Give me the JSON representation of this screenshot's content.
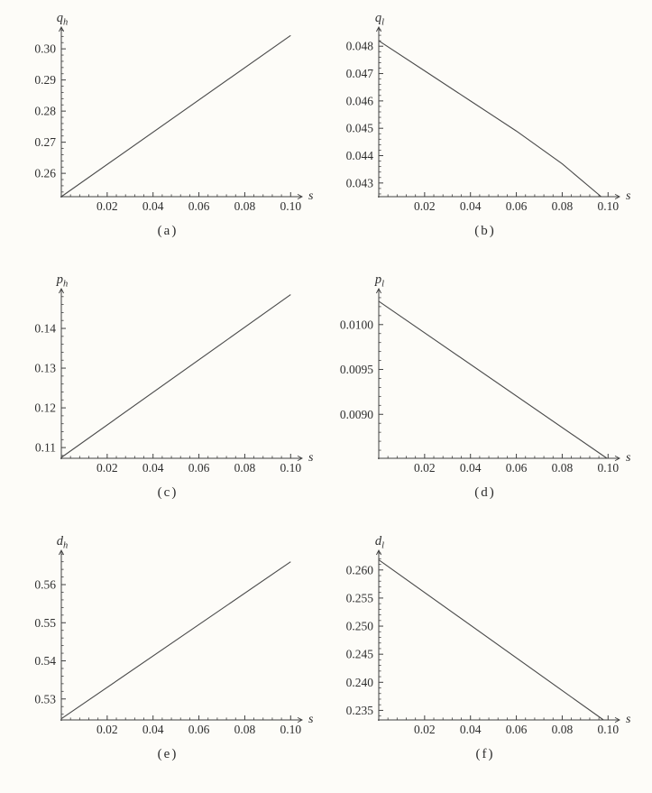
{
  "style": {
    "background": "#fdfcf8",
    "axis_color": "#3f3f3f",
    "line_color": "#4a4a4a",
    "text_color": "#2e2e2e"
  },
  "figure": {
    "layout": "3 rows x 2 columns",
    "xlabel": "s"
  },
  "chart_data": [
    {
      "type": "line",
      "panel": "a",
      "caption": "(a)",
      "ylabel": {
        "base": "q",
        "sub": "h"
      },
      "xlabel": "s",
      "trend": "increasing",
      "x": {
        "min": 0,
        "axis_max": 0.105,
        "data_max": 0.1,
        "ticks": [
          0.02,
          0.04,
          0.06,
          0.08,
          0.1
        ],
        "tick_labels": [
          "0.02",
          "0.04",
          "0.06",
          "0.08",
          "0.10"
        ],
        "minor_step": 0.004
      },
      "y": {
        "min": 0.2525,
        "max": 0.307,
        "ticks": [
          0.26,
          0.27,
          0.28,
          0.29,
          0.3
        ],
        "tick_labels": [
          "0.26",
          "0.27",
          "0.28",
          "0.29",
          "0.30"
        ],
        "minor_step": 0.002
      },
      "points": [
        [
          0,
          0.2525
        ],
        [
          0.1,
          0.3043
        ]
      ]
    },
    {
      "type": "line",
      "panel": "b",
      "caption": "(b)",
      "ylabel": {
        "base": "q",
        "sub": "l"
      },
      "xlabel": "s",
      "trend": "decreasing",
      "x": {
        "min": 0,
        "axis_max": 0.105,
        "data_max": 0.1,
        "ticks": [
          0.02,
          0.04,
          0.06,
          0.08,
          0.1
        ],
        "tick_labels": [
          "0.02",
          "0.04",
          "0.06",
          "0.08",
          "0.10"
        ],
        "minor_step": 0.004
      },
      "y": {
        "min": 0.0425,
        "max": 0.0487,
        "ticks": [
          0.043,
          0.044,
          0.045,
          0.046,
          0.047,
          0.048
        ],
        "tick_labels": [
          "0.043",
          "0.044",
          "0.045",
          "0.046",
          "0.047",
          "0.048"
        ],
        "minor_step": 0.0002
      },
      "points": [
        [
          0,
          0.0482
        ],
        [
          0.02,
          0.0471
        ],
        [
          0.04,
          0.046
        ],
        [
          0.06,
          0.0449
        ],
        [
          0.08,
          0.0437
        ],
        [
          0.097,
          0.0425
        ]
      ]
    },
    {
      "type": "line",
      "panel": "c",
      "caption": "(c)",
      "ylabel": {
        "base": "p",
        "sub": "h"
      },
      "xlabel": "s",
      "trend": "increasing",
      "x": {
        "min": 0,
        "axis_max": 0.105,
        "data_max": 0.1,
        "ticks": [
          0.02,
          0.04,
          0.06,
          0.08,
          0.1
        ],
        "tick_labels": [
          "0.02",
          "0.04",
          "0.06",
          "0.08",
          "0.10"
        ],
        "minor_step": 0.004
      },
      "y": {
        "min": 0.1073,
        "max": 0.15,
        "ticks": [
          0.11,
          0.12,
          0.13,
          0.14
        ],
        "tick_labels": [
          "0.11",
          "0.12",
          "0.13",
          "0.14"
        ],
        "minor_step": 0.002
      },
      "points": [
        [
          0,
          0.1075
        ],
        [
          0.1,
          0.1485
        ]
      ]
    },
    {
      "type": "line",
      "panel": "d",
      "caption": "(d)",
      "ylabel": {
        "base": "p",
        "sub": "l"
      },
      "xlabel": "s",
      "trend": "decreasing",
      "x": {
        "min": 0,
        "axis_max": 0.105,
        "data_max": 0.1,
        "ticks": [
          0.02,
          0.04,
          0.06,
          0.08,
          0.1
        ],
        "tick_labels": [
          "0.02",
          "0.04",
          "0.06",
          "0.08",
          "0.10"
        ],
        "minor_step": 0.004
      },
      "y": {
        "min": 0.00851,
        "max": 0.0104,
        "ticks": [
          0.009,
          0.0095,
          0.01
        ],
        "tick_labels": [
          "0.0090",
          "0.0095",
          "0.0100"
        ],
        "minor_step": 0.0001
      },
      "points": [
        [
          0,
          0.01026
        ],
        [
          0.0995,
          0.00851
        ]
      ]
    },
    {
      "type": "line",
      "panel": "e",
      "caption": "(e)",
      "ylabel": {
        "base": "d",
        "sub": "h"
      },
      "xlabel": "s",
      "trend": "increasing",
      "x": {
        "min": 0,
        "axis_max": 0.105,
        "data_max": 0.1,
        "ticks": [
          0.02,
          0.04,
          0.06,
          0.08,
          0.1
        ],
        "tick_labels": [
          "0.02",
          "0.04",
          "0.06",
          "0.08",
          "0.10"
        ],
        "minor_step": 0.004
      },
      "y": {
        "min": 0.5245,
        "max": 0.569,
        "ticks": [
          0.53,
          0.54,
          0.55,
          0.56
        ],
        "tick_labels": [
          "0.53",
          "0.54",
          "0.55",
          "0.56"
        ],
        "minor_step": 0.002
      },
      "points": [
        [
          0,
          0.5248
        ],
        [
          0.1,
          0.566
        ]
      ]
    },
    {
      "type": "line",
      "panel": "f",
      "caption": "(f)",
      "ylabel": {
        "base": "d",
        "sub": "l"
      },
      "xlabel": "s",
      "trend": "decreasing",
      "x": {
        "min": 0,
        "axis_max": 0.105,
        "data_max": 0.1,
        "ticks": [
          0.02,
          0.04,
          0.06,
          0.08,
          0.1
        ],
        "tick_labels": [
          "0.02",
          "0.04",
          "0.06",
          "0.08",
          "0.10"
        ],
        "minor_step": 0.004
      },
      "y": {
        "min": 0.2333,
        "max": 0.2635,
        "ticks": [
          0.235,
          0.24,
          0.245,
          0.25,
          0.255,
          0.26
        ],
        "tick_labels": [
          "0.235",
          "0.240",
          "0.245",
          "0.250",
          "0.255",
          "0.260"
        ],
        "minor_step": 0.001
      },
      "points": [
        [
          0,
          0.2618
        ],
        [
          0.098,
          0.2333
        ]
      ]
    }
  ]
}
